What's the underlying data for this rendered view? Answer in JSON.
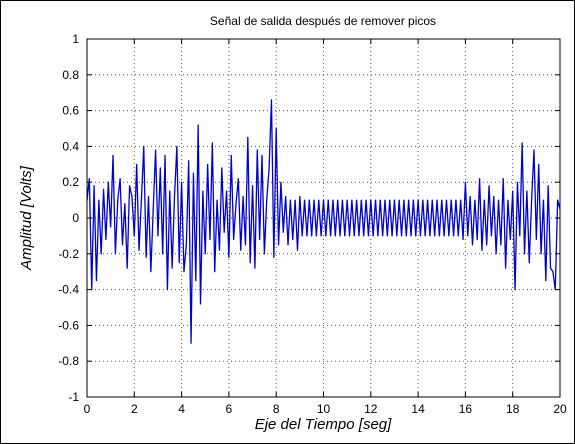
{
  "chart_data": {
    "type": "line",
    "title": "Señal de salida después de remover picos",
    "xlabel": "Eje del Tiempo [seg]",
    "ylabel": "Amplitud  [Volts]",
    "xlim": [
      0,
      20
    ],
    "ylim": [
      -1,
      1
    ],
    "xticks": [
      0,
      2,
      4,
      6,
      8,
      10,
      12,
      14,
      16,
      18,
      20
    ],
    "yticks": [
      1,
      0.8,
      0.6,
      0.4,
      0.2,
      0,
      -0.2,
      -0.4,
      -0.6,
      -0.8,
      -1
    ],
    "grid": true,
    "line_color": "#0000cc",
    "series": [
      {
        "x": [
          0.0,
          0.1,
          0.2,
          0.3,
          0.4,
          0.5,
          0.6,
          0.7,
          0.8,
          0.9,
          1.0,
          1.1,
          1.2,
          1.3,
          1.4,
          1.5,
          1.6,
          1.7,
          1.8,
          1.9,
          2.0,
          2.1,
          2.2,
          2.3,
          2.4,
          2.5,
          2.6,
          2.7,
          2.8,
          2.9,
          3.0,
          3.1,
          3.2,
          3.3,
          3.4,
          3.5,
          3.6,
          3.7,
          3.8,
          3.9,
          4.0,
          4.1,
          4.2,
          4.3,
          4.4,
          4.5,
          4.6,
          4.7,
          4.8,
          4.9,
          5.0,
          5.1,
          5.2,
          5.3,
          5.4,
          5.5,
          5.6,
          5.7,
          5.8,
          5.9,
          6.0,
          6.1,
          6.2,
          6.3,
          6.4,
          6.5,
          6.6,
          6.7,
          6.8,
          6.9,
          7.0,
          7.1,
          7.2,
          7.3,
          7.4,
          7.5,
          7.6,
          7.7,
          7.8,
          7.9,
          8.0,
          8.1,
          8.2,
          8.3,
          8.4,
          8.5,
          8.6,
          8.7,
          8.8,
          8.9,
          9.0,
          9.1,
          9.2,
          9.3,
          9.4,
          9.5,
          9.6,
          9.7,
          9.8,
          9.9,
          10.0,
          10.1,
          10.2,
          10.3,
          10.4,
          10.5,
          10.6,
          10.7,
          10.8,
          10.9,
          11.0,
          11.1,
          11.2,
          11.3,
          11.4,
          11.5,
          11.6,
          11.7,
          11.8,
          11.9,
          12.0,
          12.1,
          12.2,
          12.3,
          12.4,
          12.5,
          12.6,
          12.7,
          12.8,
          12.9,
          13.0,
          13.1,
          13.2,
          13.3,
          13.4,
          13.5,
          13.6,
          13.7,
          13.8,
          13.9,
          14.0,
          14.1,
          14.2,
          14.3,
          14.4,
          14.5,
          14.6,
          14.7,
          14.8,
          14.9,
          15.0,
          15.1,
          15.2,
          15.3,
          15.4,
          15.5,
          15.6,
          15.7,
          15.8,
          15.9,
          16.0,
          16.1,
          16.2,
          16.3,
          16.4,
          16.5,
          16.6,
          16.7,
          16.8,
          16.9,
          17.0,
          17.1,
          17.2,
          17.3,
          17.4,
          17.5,
          17.6,
          17.7,
          17.8,
          17.9,
          18.0,
          18.1,
          18.2,
          18.3,
          18.4,
          18.5,
          18.6,
          18.7,
          18.8,
          18.9,
          19.0,
          19.1,
          19.2,
          19.3,
          19.4,
          19.5,
          19.6,
          19.7,
          19.8,
          19.9,
          20.0
        ],
        "values": [
          0.1,
          0.22,
          -0.4,
          0.18,
          -0.35,
          0.1,
          -0.2,
          0.16,
          -0.12,
          0.2,
          -0.05,
          0.35,
          -0.2,
          0.1,
          0.22,
          -0.15,
          0.08,
          -0.28,
          0.18,
          0.12,
          -0.1,
          0.3,
          -0.18,
          0.1,
          0.4,
          -0.22,
          0.12,
          -0.3,
          0.05,
          0.38,
          -0.1,
          0.28,
          -0.2,
          0.35,
          -0.4,
          0.15,
          -0.28,
          0.12,
          0.4,
          -0.25,
          0.2,
          -0.3,
          -0.15,
          0.32,
          -0.7,
          0.25,
          -0.35,
          0.52,
          -0.48,
          0.15,
          -0.2,
          0.3,
          -0.12,
          0.42,
          -0.3,
          0.1,
          -0.18,
          0.28,
          -0.08,
          0.15,
          -0.22,
          0.35,
          -0.12,
          0.08,
          0.22,
          -0.18,
          0.12,
          -0.15,
          0.45,
          -0.25,
          0.18,
          -0.28,
          0.38,
          -0.12,
          0.35,
          -0.2,
          0.1,
          0.28,
          0.66,
          -0.22,
          0.5,
          -0.15,
          0.2,
          -0.08,
          0.12,
          -0.15,
          0.1,
          -0.12,
          0.1,
          -0.18,
          0.12,
          -0.1,
          0.1,
          -0.1,
          0.1,
          -0.1,
          0.1,
          -0.1,
          0.1,
          -0.1,
          0.1,
          -0.1,
          0.1,
          -0.1,
          0.1,
          -0.1,
          0.1,
          -0.1,
          0.1,
          -0.1,
          0.1,
          -0.1,
          0.1,
          -0.1,
          0.1,
          -0.1,
          0.1,
          -0.1,
          0.1,
          -0.1,
          0.1,
          -0.1,
          0.1,
          -0.1,
          0.1,
          -0.1,
          0.1,
          -0.1,
          0.1,
          -0.1,
          0.1,
          -0.1,
          0.1,
          -0.1,
          0.1,
          -0.1,
          0.1,
          -0.1,
          0.1,
          -0.1,
          0.1,
          -0.1,
          0.1,
          -0.1,
          0.1,
          -0.1,
          0.1,
          -0.1,
          0.1,
          -0.1,
          0.1,
          -0.1,
          0.1,
          -0.1,
          0.1,
          -0.1,
          0.1,
          -0.1,
          0.1,
          -0.12,
          0.2,
          -0.1,
          0.12,
          -0.15,
          0.1,
          -0.12,
          0.22,
          -0.18,
          0.1,
          -0.15,
          0.18,
          -0.1,
          0.12,
          -0.2,
          0.1,
          -0.15,
          0.22,
          -0.28,
          0.1,
          -0.12,
          0.15,
          -0.4,
          0.2,
          -0.1,
          0.42,
          -0.2,
          0.15,
          -0.25,
          0.1,
          0.38,
          -0.12,
          0.3,
          -0.2,
          0.1,
          -0.35,
          0.18,
          -0.28,
          -0.3,
          -0.4,
          0.1,
          0.05
        ]
      }
    ]
  }
}
